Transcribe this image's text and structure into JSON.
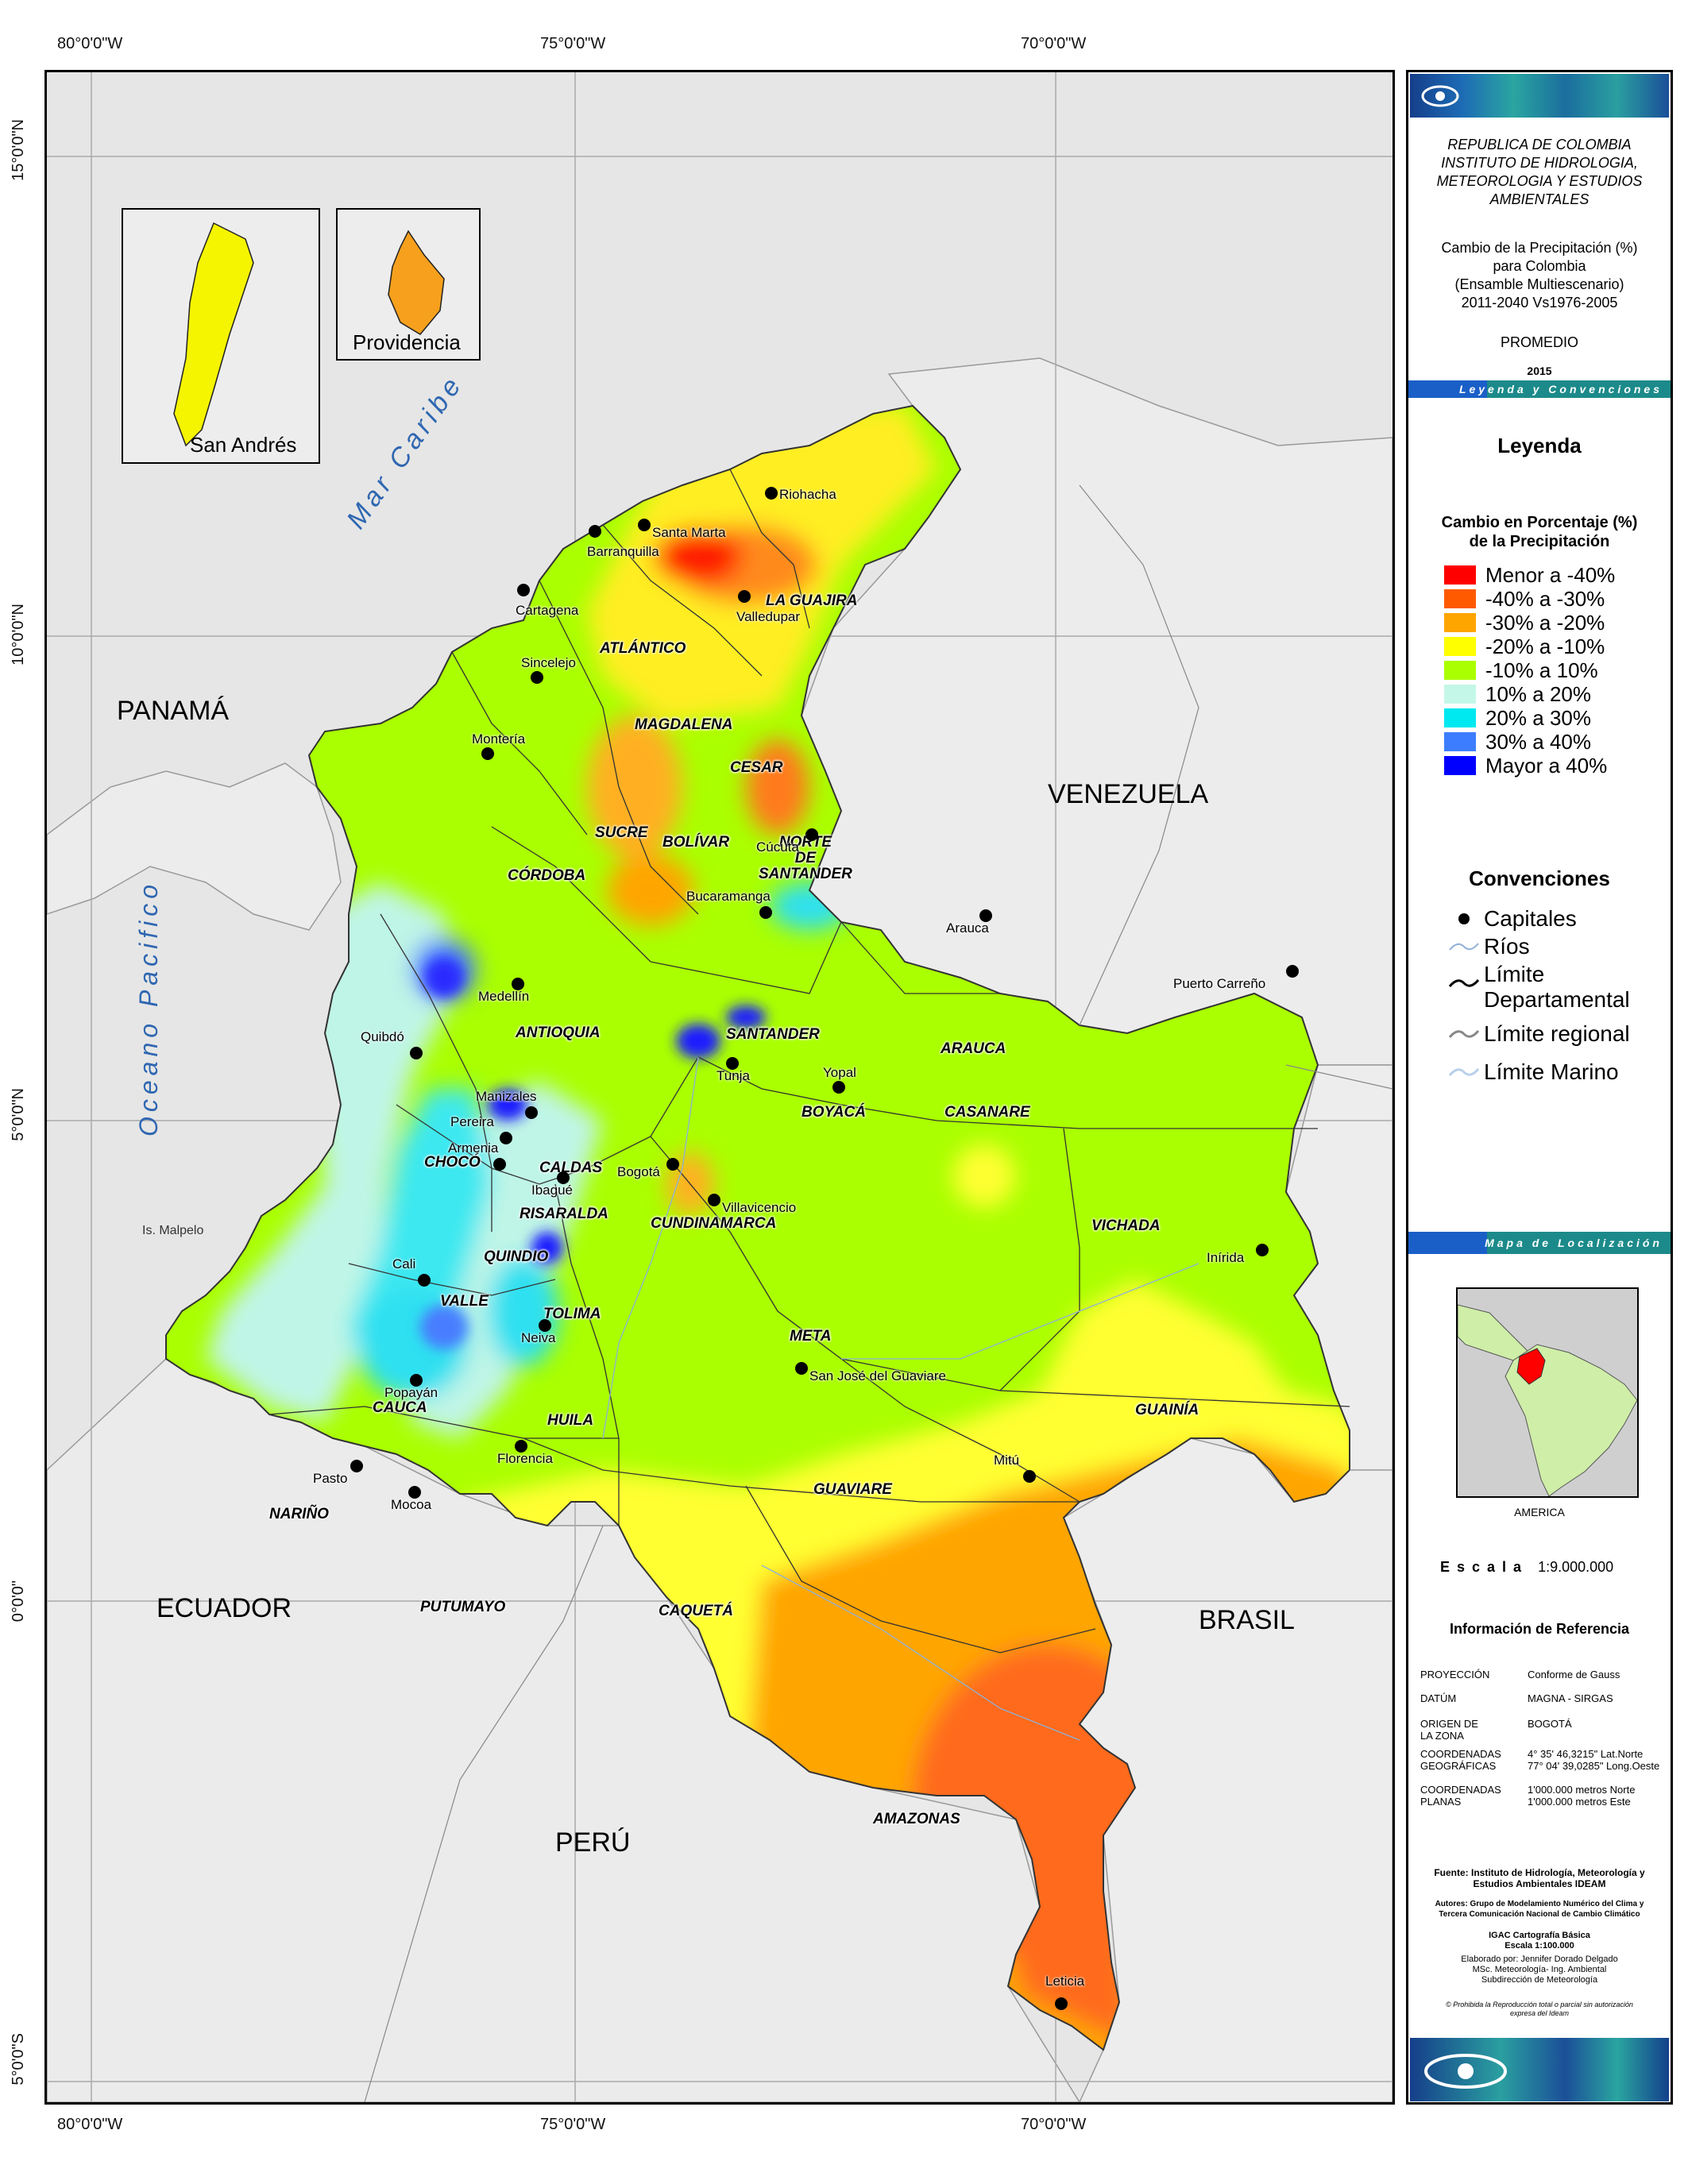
{
  "axes": {
    "top": [
      "80°0'0\"W",
      "75°0'0\"W",
      "70°0'0\"W"
    ],
    "bottom": [
      "80°0'0\"W",
      "75°0'0\"W",
      "70°0'0\"W"
    ],
    "left": [
      "15°0'0\"N",
      "10°0'0\"N",
      "5°0'0\"N",
      "0°0'0\"",
      "5°0'0\"S"
    ]
  },
  "map": {
    "insets": {
      "san_andres": "San Andrés",
      "providencia": "Providencia"
    },
    "countries": {
      "panama": "PANAMÁ",
      "venezuela": "VENEZUELA",
      "ecuador": "ECUADOR",
      "brasil": "BRASIL",
      "peru": "PERÚ"
    },
    "seas": {
      "caribe": "Mar Caribe",
      "pacifico": "Oceano Pacifico"
    },
    "island_label": "Is. Malpelo",
    "departments": [
      {
        "name": "LA GUAJIRA"
      },
      {
        "name": "ATLÁNTICO"
      },
      {
        "name": "MAGDALENA"
      },
      {
        "name": "CESAR"
      },
      {
        "name": "SUCRE"
      },
      {
        "name": "CÓRDOBA"
      },
      {
        "name": "BOLÍVAR"
      },
      {
        "name": "NORTE\nDE\nSANTANDER"
      },
      {
        "name": "ANTIOQUIA"
      },
      {
        "name": "SANTANDER"
      },
      {
        "name": "ARAUCA"
      },
      {
        "name": "BOYACÁ"
      },
      {
        "name": "CASANARE"
      },
      {
        "name": "CHOCÓ"
      },
      {
        "name": "CALDAS"
      },
      {
        "name": "RISARALDA"
      },
      {
        "name": "CUNDINAMARCA"
      },
      {
        "name": "QUINDIO"
      },
      {
        "name": "VICHADA"
      },
      {
        "name": "VALLE"
      },
      {
        "name": "TOLIMA"
      },
      {
        "name": "META"
      },
      {
        "name": "GUAINÍA"
      },
      {
        "name": "CAUCA"
      },
      {
        "name": "HUILA"
      },
      {
        "name": "GUAVIARE"
      },
      {
        "name": "NARIÑO"
      },
      {
        "name": "PUTUMAYO"
      },
      {
        "name": "CAQUETÁ"
      },
      {
        "name": "AMAZONAS"
      }
    ],
    "cities": [
      {
        "name": "Riohacha"
      },
      {
        "name": "Santa Marta"
      },
      {
        "name": "Barranquilla"
      },
      {
        "name": "Cartagena"
      },
      {
        "name": "Valledupar"
      },
      {
        "name": "Sincelejo"
      },
      {
        "name": "Montería"
      },
      {
        "name": "Cúcuta"
      },
      {
        "name": "Bucaramanga"
      },
      {
        "name": "Arauca"
      },
      {
        "name": "Puerto Carreño"
      },
      {
        "name": "Medellín"
      },
      {
        "name": "Quibdó"
      },
      {
        "name": "Tunja"
      },
      {
        "name": "Yopal"
      },
      {
        "name": "Manizales"
      },
      {
        "name": "Pereira"
      },
      {
        "name": "Armenia"
      },
      {
        "name": "Ibagué"
      },
      {
        "name": "Bogotá"
      },
      {
        "name": "Villavicencio"
      },
      {
        "name": "Inírida"
      },
      {
        "name": "Cali"
      },
      {
        "name": "Neiva"
      },
      {
        "name": "San José del Guaviare"
      },
      {
        "name": "Popayán"
      },
      {
        "name": "Pasto"
      },
      {
        "name": "Florencia"
      },
      {
        "name": "Mocoa"
      },
      {
        "name": "Mitú"
      },
      {
        "name": "Leticia"
      }
    ]
  },
  "panel": {
    "institution": [
      "REPUBLICA DE COLOMBIA",
      "INSTITUTO DE HIDROLOGIA,",
      "METEOROLOGIA Y ESTUDIOS",
      "AMBIENTALES"
    ],
    "map_title": [
      "Cambio de la Precipitación (%)",
      "para Colombia",
      "(Ensamble Multiescenario)",
      "2011-2040 Vs1976-2005"
    ],
    "subtitle": "PROMEDIO",
    "year": "2015",
    "banner_legend": "Leyenda y Convenciones",
    "legend_title": "Leyenda",
    "legend_subtitle": [
      "Cambio en Porcentaje (%)",
      "de la Precipitación"
    ],
    "legend_items": [
      {
        "label": "Menor a -40%",
        "color": "#ff0000"
      },
      {
        "label": "-40% a -30%",
        "color": "#ff5a00"
      },
      {
        "label": "-30% a -20%",
        "color": "#ffa500"
      },
      {
        "label": "-20% a -10%",
        "color": "#ffff00"
      },
      {
        "label": "-10% a 10%",
        "color": "#aaff00"
      },
      {
        "label": "10% a 20%",
        "color": "#c4f7e8"
      },
      {
        "label": "20% a 30%",
        "color": "#00e8f0"
      },
      {
        "label": "30% a 40%",
        "color": "#3c7dff"
      },
      {
        "label": "Mayor a 40%",
        "color": "#0000ff"
      }
    ],
    "conventions_title": "Convenciones",
    "conventions": [
      "Capitales",
      "Ríos",
      "Límite\nDepartamental",
      "Límite regional",
      "Límite Marino"
    ],
    "banner_location": "Mapa de Localización",
    "locator_label": "AMERICA",
    "scale_label": "E s c a l a",
    "scale_value": "1:9.000.000",
    "reference_title": "Información de Referencia",
    "reference": [
      {
        "key": "PROYECCIÓN",
        "value": "Conforme de Gauss"
      },
      {
        "key": "DATÚM",
        "value": "MAGNA - SIRGAS"
      },
      {
        "key": "ORIGEN DE\nLA ZONA",
        "value": "BOGOTÁ"
      },
      {
        "key": "COORDENADAS\nGEOGRÁFICAS",
        "value": "4° 35' 46,3215\"  Lat.Norte\n77° 04' 39,0285\" Long.Oeste"
      },
      {
        "key": "COORDENADAS\nPLANAS",
        "value": "1'000.000 metros Norte\n1'000.000 metros Este"
      }
    ],
    "fuente": "Fuente: Instituto de Hidrología, Meteorología y\nEstudios Ambientales IDEAM",
    "autores": "Autores: Grupo de Modelamiento Numérico del Clima y\nTercera Comunicación Nacional de Cambio Climático",
    "igac": "IGAC Cartografía Básica\nEscala 1:100.000",
    "elaborado": "Elaborado por: Jennifer Dorado Delgado\nMSc. Meteorología- Ing. Ambiental\nSubdirección de Meteorología",
    "prohibida": "© Prohibida la Reproducción total o parcial sin autorización\nexpresa del Ideam",
    "colors": {
      "banner_blue": "#1a5fc7",
      "banner_teal": "#1c8a8a",
      "sea_label": "#2f67b1"
    }
  }
}
